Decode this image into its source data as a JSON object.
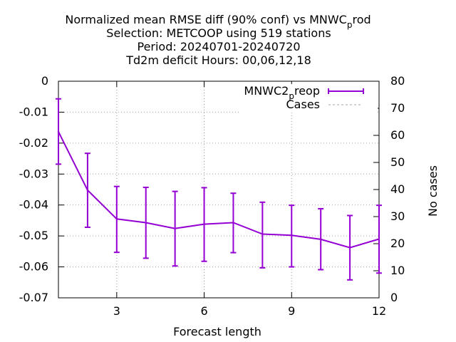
{
  "chart_data": {
    "type": "line",
    "title_lines": [
      "Normalized mean RMSE diff (90% conf) vs MNWC_prod",
      "Selection: METCOOP using   519 stations",
      "Period: 20240701-20240720",
      "Td2m deficit   Hours:  00,06,12,18"
    ],
    "title_parts": {
      "line1_pre": "Normalized mean RMSE diff (90% conf) vs MNWC",
      "line1_sub": "p",
      "line1_post": "rod"
    },
    "xlabel": "Forecast length",
    "ylabel_right": "No cases",
    "xlim": [
      1,
      12
    ],
    "ylim": [
      -0.07,
      0
    ],
    "y2lim": [
      0,
      80
    ],
    "x_ticks": [
      "3",
      "6",
      "9",
      "12"
    ],
    "y_ticks": [
      "0",
      "-0.01",
      "-0.02",
      "-0.03",
      "-0.04",
      "-0.05",
      "-0.06",
      "-0.07"
    ],
    "y2_ticks": [
      "0",
      "10",
      "20",
      "30",
      "40",
      "50",
      "60",
      "70",
      "80"
    ],
    "grid": true,
    "legend_position": "top-right",
    "series": [
      {
        "name": "MNWC2_preop",
        "name_parts": {
          "pre": "MNWC2",
          "sub": "p",
          "post": "reop"
        },
        "color": "#9400d3",
        "x": [
          1,
          2,
          3,
          4,
          5,
          6,
          7,
          8,
          9,
          10,
          11,
          12
        ],
        "values": [
          -0.0163,
          -0.0352,
          -0.0445,
          -0.0457,
          -0.0476,
          -0.0462,
          -0.0457,
          -0.0494,
          -0.0498,
          -0.0511,
          -0.0538,
          -0.051
        ],
        "err_low": [
          -0.0268,
          -0.0472,
          -0.0553,
          -0.0572,
          -0.0597,
          -0.0582,
          -0.0554,
          -0.0603,
          -0.06,
          -0.0609,
          -0.0642,
          -0.062
        ],
        "err_high": [
          -0.0057,
          -0.0233,
          -0.034,
          -0.0343,
          -0.0356,
          -0.0344,
          -0.0362,
          -0.0391,
          -0.0401,
          -0.0412,
          -0.0434,
          -0.0401
        ]
      },
      {
        "name": "Cases",
        "color": "#a0a0a0",
        "x": [],
        "values": []
      }
    ]
  }
}
